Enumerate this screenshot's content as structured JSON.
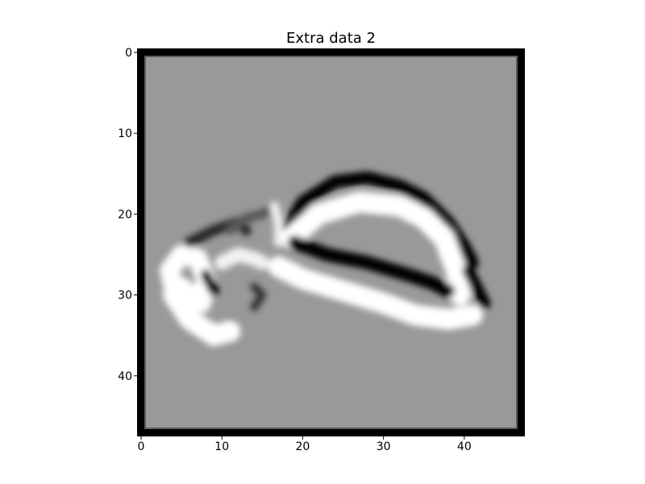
{
  "chart_data": {
    "type": "heatmap",
    "title": "Extra data 2",
    "xlabel": "",
    "ylabel": "",
    "colormap": "gray",
    "background_value": 0.6,
    "xlim": [
      -0.5,
      47.5
    ],
    "ylim": [
      47.5,
      -0.5
    ],
    "xticks": [
      0,
      10,
      20,
      30,
      40
    ],
    "yticks": [
      0,
      10,
      20,
      30,
      40
    ],
    "grid": false,
    "image_shape": [
      48,
      48
    ],
    "frame": {
      "value": 0.0,
      "inner_value": 0.2
    },
    "strokes": [
      {
        "name": "upper-dark-arc",
        "value": 0.0,
        "width": 1.6,
        "points": [
          [
            18,
            22
          ],
          [
            20,
            18.5
          ],
          [
            24,
            16
          ],
          [
            28,
            15.5
          ],
          [
            32,
            16.5
          ],
          [
            35,
            18
          ],
          [
            38,
            21
          ],
          [
            40,
            24
          ],
          [
            41,
            26
          ]
        ]
      },
      {
        "name": "upper-white-band",
        "value": 1.0,
        "width": 2.6,
        "points": [
          [
            18.5,
            23
          ],
          [
            22,
            20
          ],
          [
            27,
            18.5
          ],
          [
            32,
            19
          ],
          [
            35,
            20.5
          ],
          [
            37.5,
            23
          ],
          [
            39,
            27
          ],
          [
            39.5,
            30
          ]
        ]
      },
      {
        "name": "middle-dark-band",
        "value": 0.0,
        "width": 1.7,
        "points": [
          [
            19,
            23.5
          ],
          [
            23,
            25
          ],
          [
            28,
            26
          ],
          [
            33,
            27.5
          ],
          [
            36,
            28.5
          ],
          [
            38,
            29.5
          ]
        ]
      },
      {
        "name": "lower-white-band",
        "value": 1.0,
        "width": 2.6,
        "points": [
          [
            17,
            26.5
          ],
          [
            20,
            28
          ],
          [
            25,
            29.5
          ],
          [
            30,
            31
          ],
          [
            34,
            32.5
          ],
          [
            38,
            33
          ],
          [
            41,
            32.5
          ]
        ]
      },
      {
        "name": "right-dark-tip",
        "value": 0.0,
        "width": 1.5,
        "points": [
          [
            40.5,
            27
          ],
          [
            41.5,
            29
          ],
          [
            42.5,
            31
          ]
        ]
      },
      {
        "name": "left-white-loop",
        "value": 1.0,
        "width": 2.4,
        "points": [
          [
            4,
            29
          ],
          [
            3.5,
            27
          ],
          [
            5,
            25
          ],
          [
            7,
            25.5
          ],
          [
            8,
            28
          ],
          [
            7.5,
            31
          ],
          [
            5,
            29
          ]
        ]
      },
      {
        "name": "left-white-tail",
        "value": 1.0,
        "width": 2.6,
        "points": [
          [
            4,
            30
          ],
          [
            6,
            33
          ],
          [
            9,
            35
          ],
          [
            11,
            34.5
          ]
        ]
      },
      {
        "name": "left-dark-spot",
        "value": 0.0,
        "width": 1.3,
        "points": [
          [
            8,
            27.5
          ],
          [
            9,
            29.5
          ]
        ]
      },
      {
        "name": "left-dark-top",
        "value": 0.15,
        "width": 1.3,
        "points": [
          [
            6,
            23.5
          ],
          [
            9,
            22
          ],
          [
            12,
            21
          ],
          [
            13,
            22
          ]
        ]
      },
      {
        "name": "left-white-top",
        "value": 0.95,
        "width": 1.8,
        "points": [
          [
            10,
            26
          ],
          [
            12,
            25
          ],
          [
            14,
            25.5
          ],
          [
            15,
            26
          ]
        ]
      },
      {
        "name": "small-dark-mark",
        "value": 0.2,
        "width": 1.0,
        "points": [
          [
            14,
            29
          ],
          [
            15,
            30
          ],
          [
            14,
            31.5
          ]
        ]
      },
      {
        "name": "upper-left-grey-mark",
        "value": 0.35,
        "width": 1.2,
        "points": [
          [
            11,
            22
          ],
          [
            13,
            20.5
          ],
          [
            15,
            20
          ],
          [
            16,
            19.5
          ]
        ]
      },
      {
        "name": "small-white-mark",
        "value": 0.95,
        "width": 1.1,
        "points": [
          [
            16.5,
            19
          ],
          [
            17,
            21
          ],
          [
            17,
            23.5
          ]
        ]
      }
    ]
  }
}
